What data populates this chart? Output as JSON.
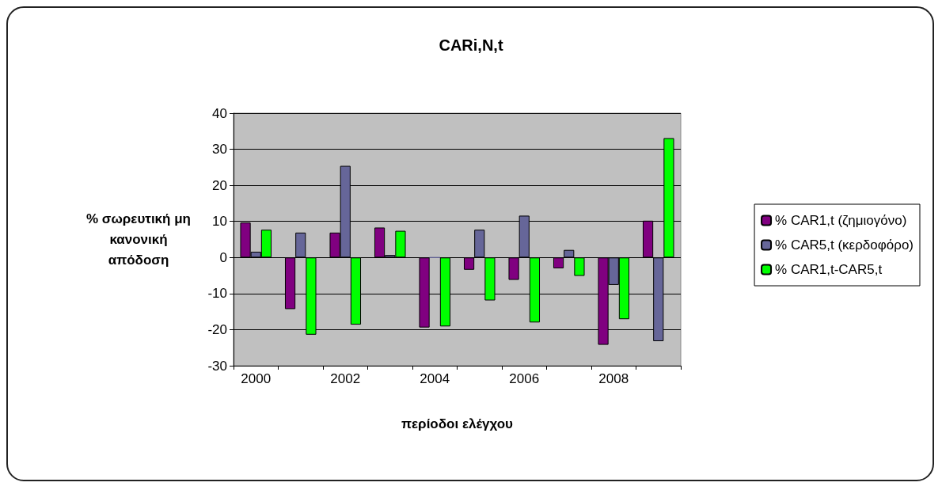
{
  "chart_data": {
    "type": "bar",
    "title": "CARi,N,t",
    "xlabel": "περίοδοι ελέγχου",
    "ylabel": "% σωρευτική μη\nκανονική\nαπόδοση",
    "categories": [
      "2000",
      null,
      "2002",
      null,
      "2004",
      null,
      "2006",
      null,
      "2008",
      null
    ],
    "series": [
      {
        "name": "% CAR1,t (ζημιογόνο)",
        "color": "#800080",
        "values": [
          9.7,
          -14.3,
          6.9,
          8.3,
          -19.4,
          -3.4,
          -6.2,
          -3,
          -24.2,
          10.2
        ]
      },
      {
        "name": "% CAR5,t (κερδοφόρο)",
        "color": "#666699",
        "values": [
          1.6,
          6.9,
          25.4,
          0.7,
          0,
          7.7,
          11.6,
          2.1,
          -7.6,
          -23.2
        ]
      },
      {
        "name": "% CAR1,t-CAR5,t",
        "color": "#00ff00",
        "values": [
          7.7,
          -21.4,
          -18.6,
          7.4,
          -19.1,
          -11.9,
          -18,
          -5.1,
          -17.1,
          33.1
        ]
      }
    ],
    "ylim": [
      -30,
      40
    ],
    "yticks": [
      -30,
      -20,
      -10,
      0,
      10,
      20,
      30,
      40
    ],
    "grid": "y",
    "legend": "right"
  }
}
